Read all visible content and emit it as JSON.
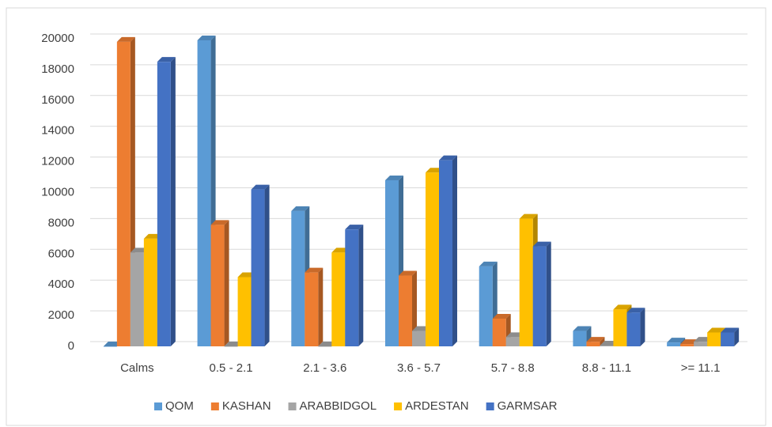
{
  "chart_data": {
    "type": "bar",
    "categories": [
      "Calms",
      "0.5 -  2.1",
      "2.1 -  3.6",
      "3.6 -  5.7",
      "5.7 -  8.8",
      "8.8 - 11.1",
      ">= 11.1"
    ],
    "series": [
      {
        "name": "QOM",
        "color": "#5b9bd5",
        "values": [
          0,
          19900,
          8800,
          10800,
          5200,
          1000,
          250
        ]
      },
      {
        "name": "KASHAN",
        "color": "#ed7d31",
        "values": [
          19800,
          7900,
          4800,
          4600,
          1800,
          300,
          150
        ]
      },
      {
        "name": "ARABBIDGOL",
        "color": "#a5a5a5",
        "values": [
          6100,
          0,
          0,
          1000,
          600,
          50,
          300
        ]
      },
      {
        "name": "ARDESTAN",
        "color": "#ffc000",
        "values": [
          7000,
          4500,
          6100,
          11300,
          8300,
          2400,
          900
        ]
      },
      {
        "name": "GARMSAR",
        "color": "#4472c4",
        "values": [
          18500,
          10200,
          7600,
          12100,
          6500,
          2200,
          900
        ]
      }
    ],
    "ylim": [
      0,
      20000
    ],
    "yticks": [
      0,
      2000,
      4000,
      6000,
      8000,
      10000,
      12000,
      14000,
      16000,
      18000,
      20000
    ],
    "grid": true,
    "legend": "bottom"
  }
}
